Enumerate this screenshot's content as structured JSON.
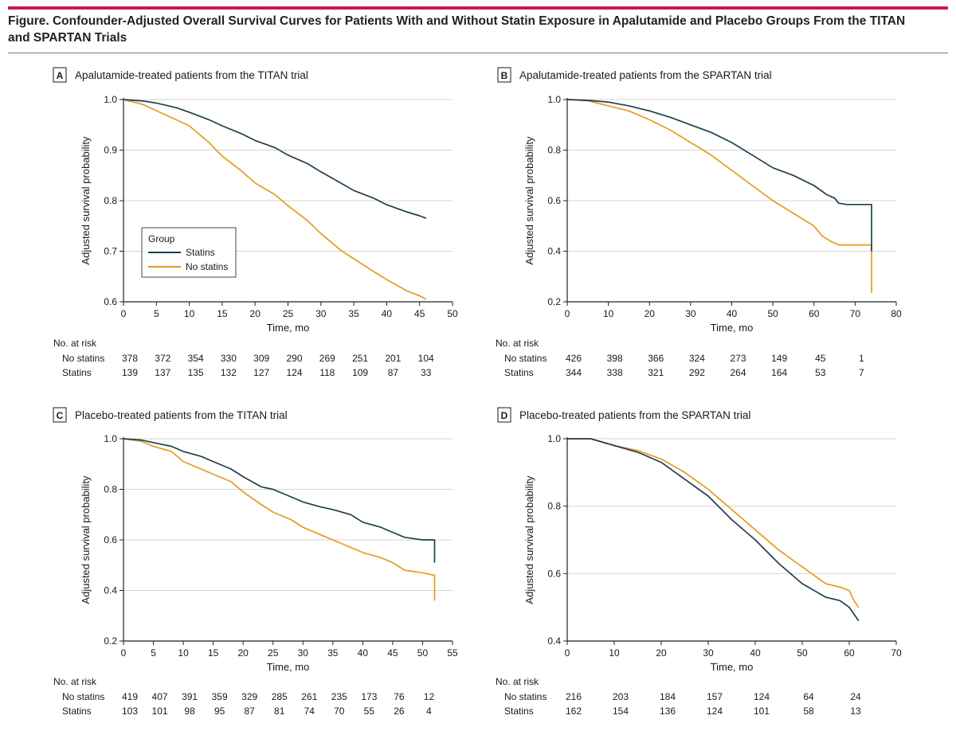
{
  "figure": {
    "title": "Figure. Confounder-Adjusted Overall Survival Curves for Patients With and Without Statin Exposure in Apalutamide and Placebo Groups From the TITAN and SPARTAN Trials"
  },
  "colors": {
    "statins": "#1f3f4f",
    "no_statins": "#e39d1e",
    "accent_rule": "#c8185f"
  },
  "legend": {
    "title": "Group",
    "statins": "Statins",
    "no_statins": "No statins"
  },
  "chart_data": [
    {
      "type": "line",
      "letter": "A",
      "title": "Apalutamide-treated patients from the TITAN trial",
      "xlabel": "Time, mo",
      "ylabel": "Adjusted survival probability",
      "xlim": [
        0,
        50
      ],
      "ylim": [
        0.6,
        1.0
      ],
      "xticks": [
        0,
        5,
        10,
        15,
        20,
        25,
        30,
        35,
        40,
        45,
        50
      ],
      "yticks": [
        0.6,
        0.7,
        0.8,
        0.9,
        1.0
      ],
      "ytick_labels": [
        "0.6",
        "0.7",
        "0.8",
        "0.9",
        "1.0"
      ],
      "grid": "horizontal",
      "series": [
        {
          "name": "Statins",
          "x": [
            0,
            3,
            5,
            8,
            10,
            13,
            15,
            18,
            20,
            23,
            25,
            28,
            30,
            33,
            35,
            38,
            40,
            43,
            45,
            46
          ],
          "y": [
            1.0,
            0.997,
            0.993,
            0.984,
            0.975,
            0.96,
            0.948,
            0.932,
            0.919,
            0.905,
            0.89,
            0.873,
            0.857,
            0.835,
            0.82,
            0.805,
            0.792,
            0.778,
            0.77,
            0.765
          ]
        },
        {
          "name": "No statins",
          "x": [
            0,
            3,
            5,
            8,
            10,
            13,
            15,
            18,
            20,
            23,
            25,
            28,
            30,
            33,
            35,
            38,
            40,
            43,
            45,
            46
          ],
          "y": [
            1.0,
            0.99,
            0.978,
            0.96,
            0.948,
            0.915,
            0.888,
            0.858,
            0.835,
            0.812,
            0.79,
            0.76,
            0.735,
            0.702,
            0.685,
            0.66,
            0.644,
            0.622,
            0.612,
            0.605
          ]
        }
      ],
      "risk_table": {
        "header": "No. at risk",
        "x": [
          0,
          5,
          10,
          15,
          20,
          25,
          30,
          35,
          40,
          45
        ],
        "rows": [
          {
            "label": "No statins",
            "values": [
              "378",
              "372",
              "354",
              "330",
              "309",
              "290",
              "269",
              "251",
              "201",
              "104"
            ]
          },
          {
            "label": "Statins",
            "values": [
              "139",
              "137",
              "135",
              "132",
              "127",
              "124",
              "118",
              "109",
              "87",
              "33"
            ]
          }
        ]
      }
    },
    {
      "type": "line",
      "letter": "B",
      "title": "Apalutamide-treated patients from the SPARTAN trial",
      "xlabel": "Time, mo",
      "ylabel": "Adjusted survival probability",
      "xlim": [
        0,
        80
      ],
      "ylim": [
        0.2,
        1.0
      ],
      "xticks": [
        0,
        10,
        20,
        30,
        40,
        50,
        60,
        70,
        80
      ],
      "yticks": [
        0.2,
        0.4,
        0.6,
        0.8,
        1.0
      ],
      "ytick_labels": [
        "0.2",
        "0.4",
        "0.6",
        "0.8",
        "1.0"
      ],
      "grid": "horizontal",
      "series": [
        {
          "name": "Statins",
          "x": [
            0,
            5,
            10,
            15,
            20,
            25,
            30,
            35,
            40,
            45,
            50,
            55,
            60,
            63,
            65,
            66,
            68,
            70,
            72,
            74,
            74
          ],
          "y": [
            1.0,
            0.997,
            0.99,
            0.975,
            0.955,
            0.93,
            0.9,
            0.87,
            0.83,
            0.78,
            0.73,
            0.7,
            0.66,
            0.625,
            0.61,
            0.59,
            0.585,
            0.585,
            0.585,
            0.585,
            0.4
          ]
        },
        {
          "name": "No statins",
          "x": [
            0,
            5,
            10,
            15,
            20,
            25,
            30,
            35,
            40,
            45,
            50,
            55,
            60,
            62,
            64,
            66,
            68,
            70,
            74,
            74
          ],
          "y": [
            1.0,
            0.995,
            0.975,
            0.955,
            0.92,
            0.88,
            0.83,
            0.78,
            0.72,
            0.66,
            0.6,
            0.55,
            0.5,
            0.46,
            0.44,
            0.425,
            0.425,
            0.425,
            0.425,
            0.235
          ]
        }
      ],
      "risk_table": {
        "header": "No. at risk",
        "x": [
          0,
          10,
          20,
          30,
          40,
          50,
          60,
          70
        ],
        "rows": [
          {
            "label": "No statins",
            "values": [
              "426",
              "398",
              "366",
              "324",
              "273",
              "149",
              "45",
              "1"
            ]
          },
          {
            "label": "Statins",
            "values": [
              "344",
              "338",
              "321",
              "292",
              "264",
              "164",
              "53",
              "7"
            ]
          }
        ]
      }
    },
    {
      "type": "line",
      "letter": "C",
      "title": "Placebo-treated patients from the TITAN trial",
      "xlabel": "Time, mo",
      "ylabel": "Adjusted survival probability",
      "xlim": [
        0,
        55
      ],
      "ylim": [
        0.2,
        1.0
      ],
      "xticks": [
        0,
        5,
        10,
        15,
        20,
        25,
        30,
        35,
        40,
        45,
        50,
        55
      ],
      "yticks": [
        0.2,
        0.4,
        0.6,
        0.8,
        1.0
      ],
      "ytick_labels": [
        "0.2",
        "0.4",
        "0.6",
        "0.8",
        "1.0"
      ],
      "grid": "horizontal",
      "series": [
        {
          "name": "Statins",
          "x": [
            0,
            3,
            5,
            8,
            10,
            13,
            15,
            18,
            20,
            23,
            25,
            28,
            30,
            33,
            35,
            38,
            40,
            43,
            45,
            47,
            50,
            52,
            52
          ],
          "y": [
            1.0,
            0.995,
            0.985,
            0.97,
            0.95,
            0.93,
            0.91,
            0.88,
            0.85,
            0.81,
            0.8,
            0.77,
            0.75,
            0.73,
            0.72,
            0.7,
            0.67,
            0.65,
            0.63,
            0.61,
            0.6,
            0.6,
            0.51
          ]
        },
        {
          "name": "No statins",
          "x": [
            0,
            3,
            5,
            8,
            10,
            13,
            15,
            18,
            20,
            23,
            25,
            28,
            30,
            33,
            35,
            38,
            40,
            43,
            45,
            47,
            50,
            52,
            52
          ],
          "y": [
            1.0,
            0.99,
            0.97,
            0.95,
            0.91,
            0.88,
            0.86,
            0.83,
            0.79,
            0.74,
            0.71,
            0.68,
            0.65,
            0.62,
            0.6,
            0.57,
            0.55,
            0.53,
            0.51,
            0.48,
            0.47,
            0.46,
            0.36
          ]
        }
      ],
      "risk_table": {
        "header": "No. at risk",
        "x": [
          0,
          5,
          10,
          15,
          20,
          25,
          30,
          35,
          40,
          45,
          50
        ],
        "rows": [
          {
            "label": "No statins",
            "values": [
              "419",
              "407",
              "391",
              "359",
              "329",
              "285",
              "261",
              "235",
              "173",
              "76",
              "12"
            ]
          },
          {
            "label": "Statins",
            "values": [
              "103",
              "101",
              "98",
              "95",
              "87",
              "81",
              "74",
              "70",
              "55",
              "26",
              "4"
            ]
          }
        ]
      }
    },
    {
      "type": "line",
      "letter": "D",
      "title": "Placebo-treated patients from the SPARTAN trial",
      "xlabel": "Time, mo",
      "ylabel": "Adjusted survival probability",
      "xlim": [
        0,
        70
      ],
      "ylim": [
        0.4,
        1.0
      ],
      "xticks": [
        0,
        10,
        20,
        30,
        40,
        50,
        60,
        70
      ],
      "yticks": [
        0.4,
        0.6,
        0.8,
        1.0
      ],
      "ytick_labels": [
        "0.4",
        "0.6",
        "0.8",
        "1.0"
      ],
      "grid": "horizontal",
      "series": [
        {
          "name": "Statins",
          "x": [
            0,
            5,
            10,
            15,
            20,
            25,
            30,
            35,
            40,
            45,
            50,
            55,
            58,
            60,
            61,
            62
          ],
          "y": [
            1.0,
            1.0,
            0.98,
            0.96,
            0.93,
            0.88,
            0.83,
            0.76,
            0.7,
            0.63,
            0.57,
            0.53,
            0.52,
            0.5,
            0.48,
            0.46
          ]
        },
        {
          "name": "No statins",
          "x": [
            0,
            5,
            10,
            15,
            20,
            25,
            30,
            35,
            40,
            45,
            50,
            55,
            58,
            60,
            61,
            62
          ],
          "y": [
            1.0,
            1.0,
            0.98,
            0.965,
            0.94,
            0.9,
            0.85,
            0.79,
            0.73,
            0.67,
            0.62,
            0.57,
            0.56,
            0.55,
            0.52,
            0.5
          ]
        }
      ],
      "risk_table": {
        "header": "No. at risk",
        "x": [
          0,
          10,
          20,
          30,
          40,
          50,
          60
        ],
        "rows": [
          {
            "label": "No statins",
            "values": [
              "216",
              "203",
              "184",
              "157",
              "124",
              "64",
              "24"
            ]
          },
          {
            "label": "Statins",
            "values": [
              "162",
              "154",
              "136",
              "124",
              "101",
              "58",
              "13"
            ]
          }
        ]
      }
    }
  ]
}
